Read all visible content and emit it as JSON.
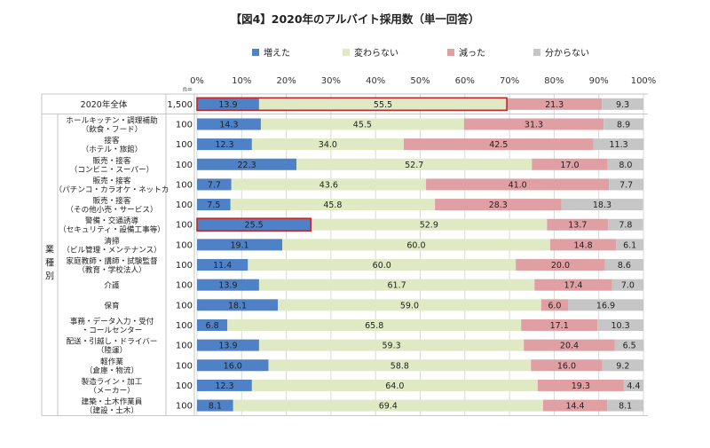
{
  "chart_data": {
    "type": "bar",
    "orientation": "horizontal",
    "stacked": true,
    "title": "【図4】2020年のアルバイト採用数（単一回答）",
    "n_label": "n=",
    "xlim": [
      0,
      100
    ],
    "x_ticks": [
      "0%",
      "10%",
      "20%",
      "30%",
      "40%",
      "50%",
      "60%",
      "70%",
      "80%",
      "90%",
      "100%"
    ],
    "legend_position": "top",
    "group_label": [
      "業",
      "種",
      "別"
    ],
    "colors": {
      "increase": "#4f81c7",
      "unchanged": "#dfeac4",
      "decrease": "#e0a0a3",
      "unknown": "#c6c6c6",
      "highlight": "#c0272d",
      "grid": "#d9d9d9"
    },
    "series": [
      {
        "name": "増えた",
        "key": "increase"
      },
      {
        "name": "変わらない",
        "key": "unchanged"
      },
      {
        "name": "減った",
        "key": "decrease"
      },
      {
        "name": "分からない",
        "key": "unknown"
      }
    ],
    "rows": [
      {
        "lines": [
          "2020年全体"
        ],
        "n": "1,500",
        "values": [
          13.9,
          55.5,
          21.3,
          9.3
        ],
        "labels": [
          "13.9",
          "55.5",
          "21.3",
          "9.3"
        ],
        "highlight": [
          0,
          1
        ]
      },
      {
        "lines": [
          "ホールキッチン・調理補助",
          "（飲食・フード）"
        ],
        "n": "100",
        "values": [
          14.3,
          45.5,
          31.3,
          8.9
        ],
        "labels": [
          "14.3",
          "45.5",
          "31.3",
          "8.9"
        ],
        "highlight": []
      },
      {
        "lines": [
          "接客",
          "（ホテル・旅館）"
        ],
        "n": "100",
        "values": [
          12.3,
          34.0,
          42.5,
          11.3
        ],
        "labels": [
          "12.3",
          "34.0",
          "42.5",
          "11.3"
        ],
        "highlight": []
      },
      {
        "lines": [
          "販売・接客",
          "（コンビニ・スーパー）"
        ],
        "n": "100",
        "values": [
          22.3,
          52.7,
          17.0,
          8.0
        ],
        "labels": [
          "22.3",
          "52.7",
          "17.0",
          "8.0"
        ],
        "highlight": []
      },
      {
        "lines": [
          "販売・接客",
          "（パチンコ・カラオケ・ネットカ"
        ],
        "n": "100",
        "values": [
          7.7,
          43.6,
          41.0,
          7.7
        ],
        "labels": [
          "7.7",
          "43.6",
          "41.0",
          "7.7"
        ],
        "highlight": []
      },
      {
        "lines": [
          "販売・接客",
          "（その他小売・サービス）"
        ],
        "n": "100",
        "values": [
          7.5,
          45.8,
          28.3,
          18.3
        ],
        "labels": [
          "7.5",
          "45.8",
          "28.3",
          "18.3"
        ],
        "highlight": []
      },
      {
        "lines": [
          "警備・交通誘導",
          "（セキュリティ・設備工事等）"
        ],
        "n": "100",
        "values": [
          25.5,
          52.9,
          13.7,
          7.8
        ],
        "labels": [
          "25.5",
          "52.9",
          "13.7",
          "7.8"
        ],
        "highlight": [
          0
        ]
      },
      {
        "lines": [
          "清掃",
          "（ビル管理・メンテナンス）"
        ],
        "n": "100",
        "values": [
          19.1,
          60.0,
          14.8,
          6.1
        ],
        "labels": [
          "19.1",
          "60.0",
          "14.8",
          "6.1"
        ],
        "highlight": []
      },
      {
        "lines": [
          "家庭教師・講師・試験監督",
          "（教育・学校法人）"
        ],
        "n": "100",
        "values": [
          11.4,
          60.0,
          20.0,
          8.6
        ],
        "labels": [
          "11.4",
          "60.0",
          "20.0",
          "8.6"
        ],
        "highlight": []
      },
      {
        "lines": [
          "介護"
        ],
        "n": "100",
        "values": [
          13.9,
          61.7,
          17.4,
          7.0
        ],
        "labels": [
          "13.9",
          "61.7",
          "17.4",
          "7.0"
        ],
        "highlight": []
      },
      {
        "lines": [
          "保育"
        ],
        "n": "100",
        "values": [
          18.1,
          59.0,
          6.0,
          16.9
        ],
        "labels": [
          "18.1",
          "59.0",
          "6.0",
          "16.9"
        ],
        "highlight": []
      },
      {
        "lines": [
          "事務・データ入力・受付",
          "・コールセンター"
        ],
        "n": "100",
        "values": [
          6.8,
          65.8,
          17.1,
          10.3
        ],
        "labels": [
          "6.8",
          "65.8",
          "17.1",
          "10.3"
        ],
        "highlight": []
      },
      {
        "lines": [
          "配送・引越し・ドライバー",
          "（陸運）"
        ],
        "n": "100",
        "values": [
          13.9,
          59.3,
          20.4,
          6.5
        ],
        "labels": [
          "13.9",
          "59.3",
          "20.4",
          "6.5"
        ],
        "highlight": []
      },
      {
        "lines": [
          "軽作業",
          "（倉庫・物流）"
        ],
        "n": "100",
        "values": [
          16.0,
          58.8,
          16.0,
          9.2
        ],
        "labels": [
          "16.0",
          "58.8",
          "16.0",
          "9.2"
        ],
        "highlight": []
      },
      {
        "lines": [
          "製造ライン・加工",
          "（メーカー）"
        ],
        "n": "100",
        "values": [
          12.3,
          64.0,
          19.3,
          4.4
        ],
        "labels": [
          "12.3",
          "64.0",
          "19.3",
          "4.4"
        ],
        "highlight": []
      },
      {
        "lines": [
          "建築・土木作業員",
          "（建設・土木）"
        ],
        "n": "100",
        "values": [
          8.1,
          69.4,
          14.4,
          8.1
        ],
        "labels": [
          "8.1",
          "69.4",
          "14.4",
          "8.1"
        ],
        "highlight": []
      }
    ]
  }
}
